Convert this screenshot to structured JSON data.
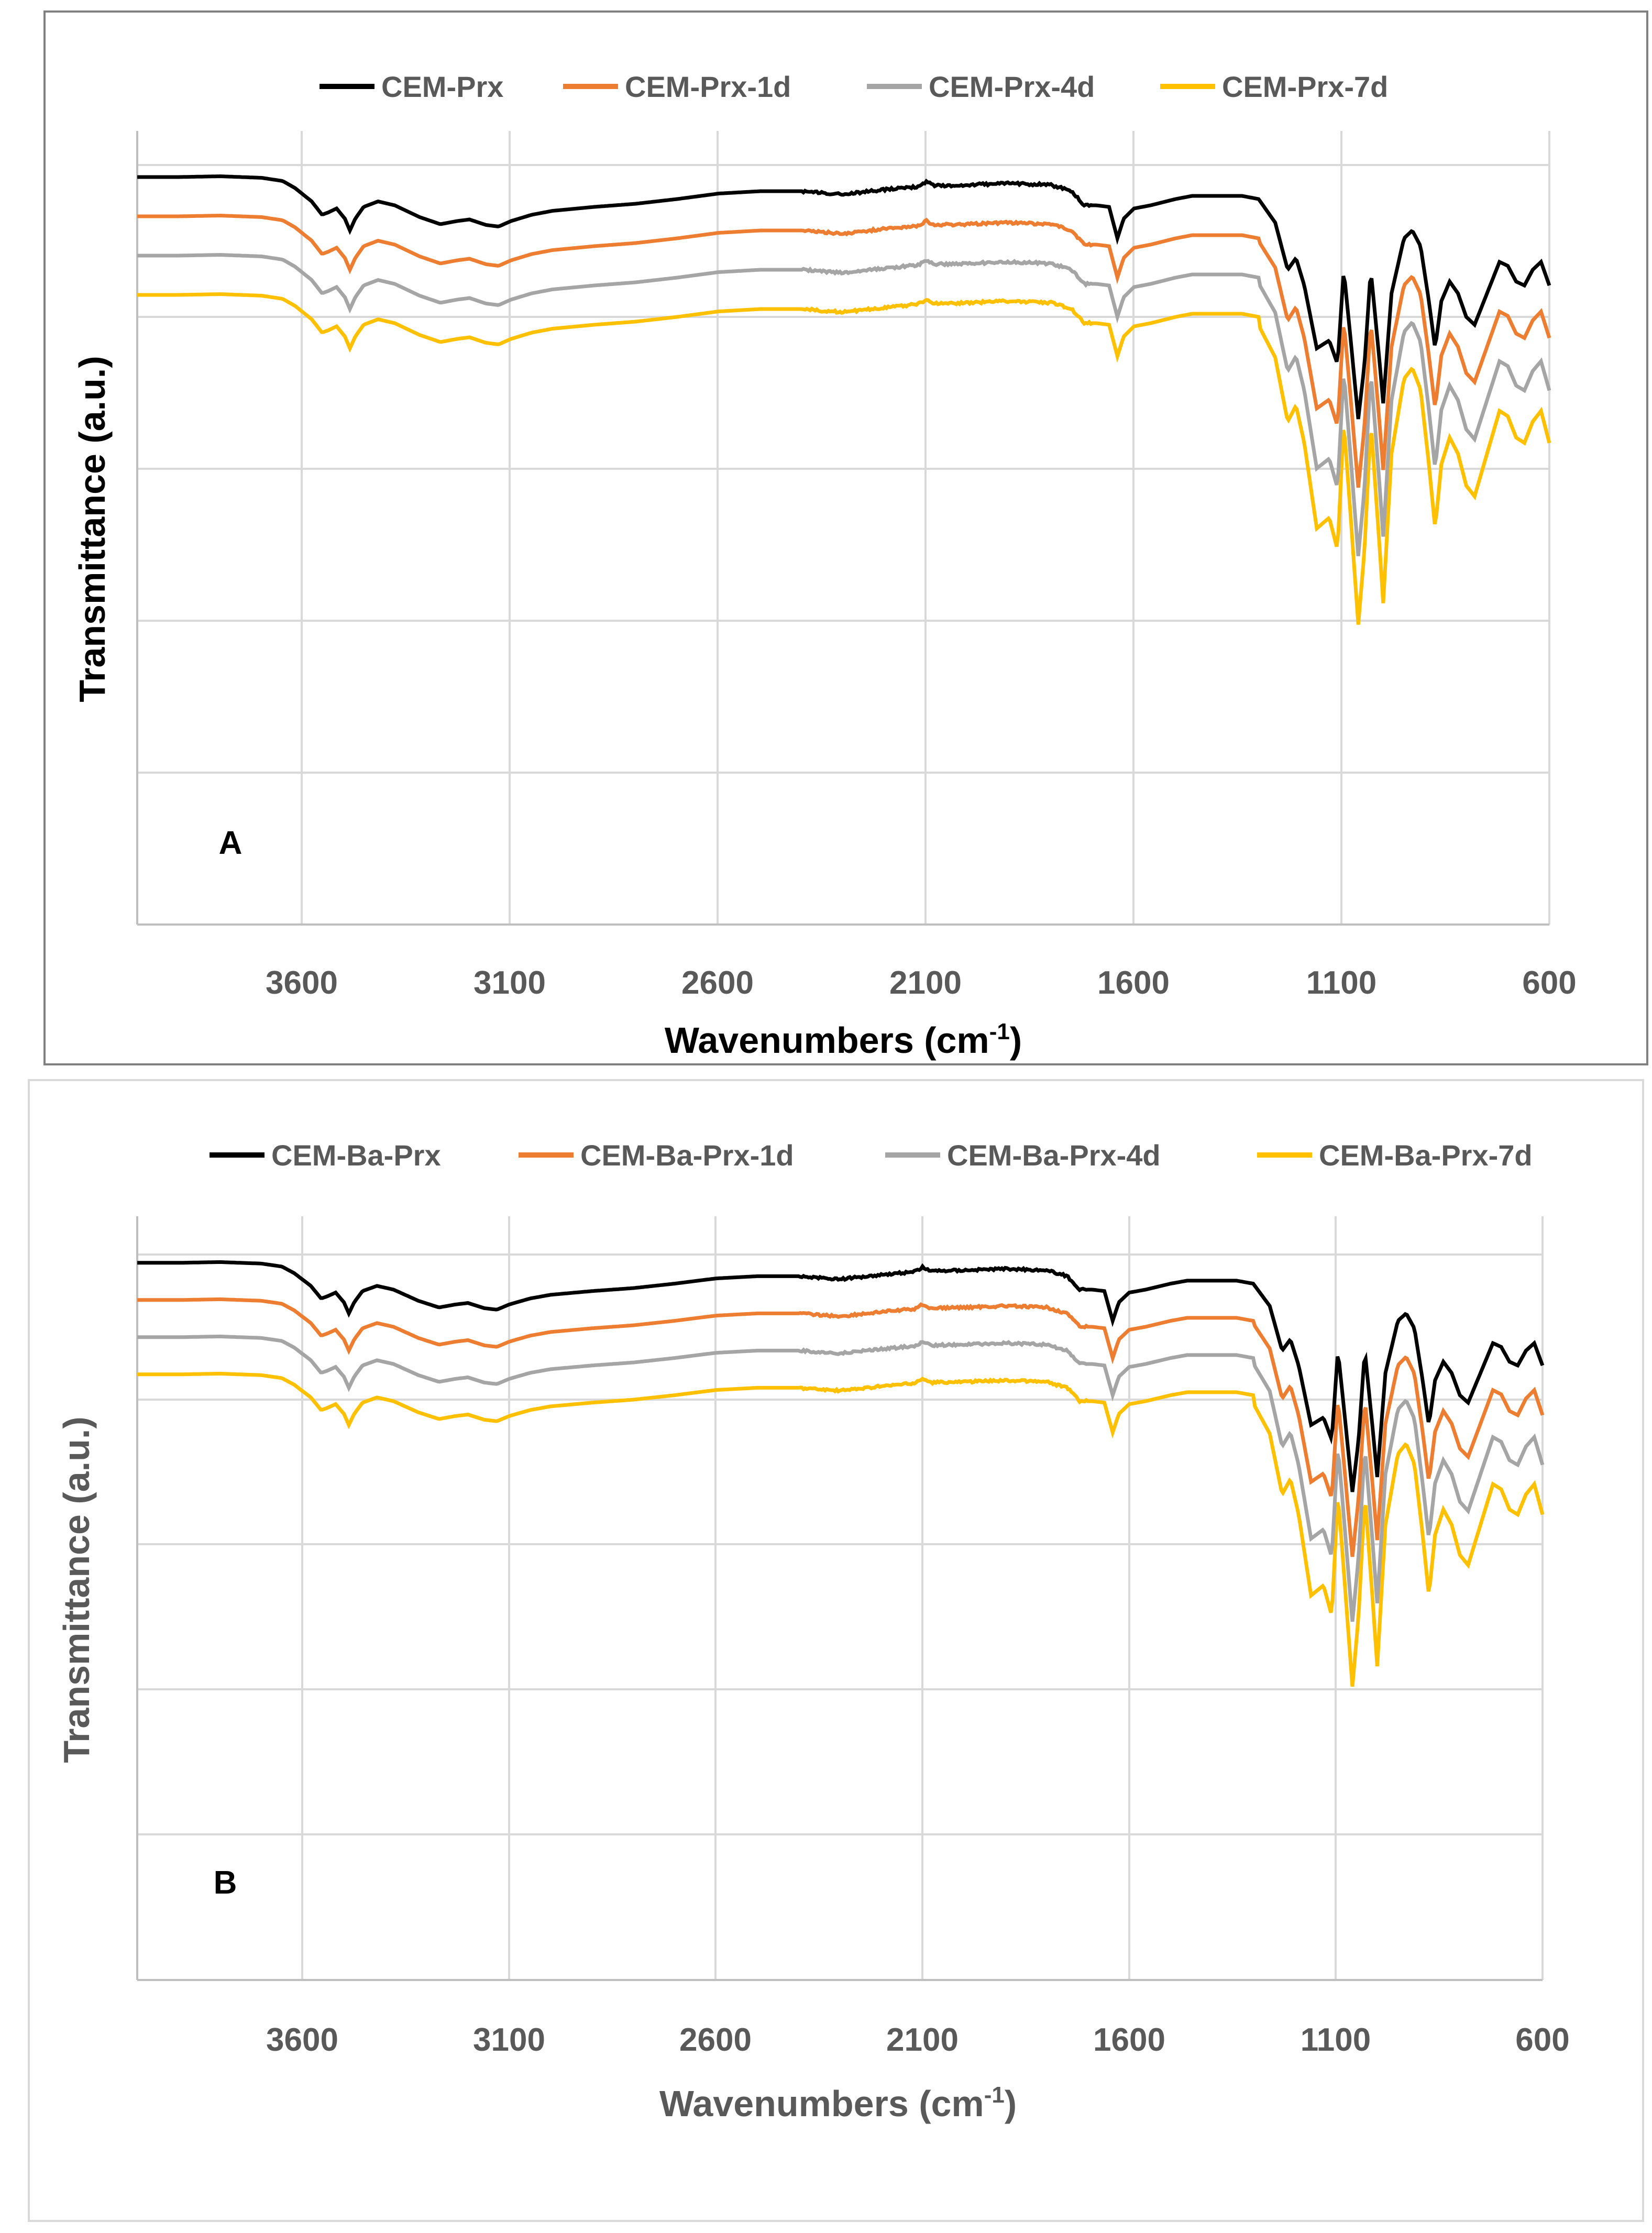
{
  "colors": {
    "black": "#000000",
    "orange": "#ED7D31",
    "gray": "#A5A5A5",
    "yellow": "#FFC000",
    "grid": "#D9D9D9",
    "frame": "#808080",
    "axis_text": "#595959"
  },
  "chart_data": [
    {
      "type": "line",
      "panel_label": "A",
      "xlabel": "Wavenumbers (cm",
      "xlabel_sup": "-1",
      "xlabel_close": ")",
      "ylabel": "Transmittance (a.u.)",
      "xlim": [
        4000,
        600
      ],
      "x_reversed": true,
      "xticks": [
        "3600",
        "3100",
        "2600",
        "2100",
        "1600",
        "1100",
        "600"
      ],
      "grid": "horizontal",
      "legend_position": "top",
      "series": [
        {
          "name": "CEM-Prx",
          "color": "#000000",
          "offset": 0
        },
        {
          "name": "CEM-Prx-1d",
          "color": "#ED7D31",
          "offset": 0.5
        },
        {
          "name": "CEM-Prx-4d",
          "color": "#A5A5A5",
          "offset": 1.0
        },
        {
          "name": "CEM-Prx-7d",
          "color": "#FFC000",
          "offset": 1.5
        }
      ]
    },
    {
      "type": "line",
      "panel_label": "B",
      "xlabel": "Wavenumbers (cm",
      "xlabel_sup": "-1",
      "xlabel_close": ")",
      "ylabel": "Transmittance (a.u.)",
      "xlim": [
        4000,
        600
      ],
      "x_reversed": true,
      "xticks": [
        "3600",
        "3100",
        "2600",
        "2100",
        "1600",
        "1100",
        "600"
      ],
      "grid": "horizontal",
      "legend_position": "top",
      "series": [
        {
          "name": "CEM-Ba-Prx",
          "color": "#000000",
          "offset": 0
        },
        {
          "name": "CEM-Ba-Prx-1d",
          "color": "#ED7D31",
          "offset": 0.5
        },
        {
          "name": "CEM-Ba-Prx-4d",
          "color": "#A5A5A5",
          "offset": 1.0
        },
        {
          "name": "CEM-Ba-Prx-7d",
          "color": "#FFC000",
          "offset": 1.5
        }
      ]
    }
  ],
  "spectrum_profile": [
    [
      4000,
      0.02
    ],
    [
      3900,
      0.02
    ],
    [
      3800,
      0.01
    ],
    [
      3700,
      0.03
    ],
    [
      3650,
      0.07
    ],
    [
      3620,
      0.16
    ],
    [
      3580,
      0.33
    ],
    [
      3555,
      0.5
    ],
    [
      3540,
      0.47
    ],
    [
      3520,
      0.42
    ],
    [
      3500,
      0.55
    ],
    [
      3488,
      0.7
    ],
    [
      3475,
      0.55
    ],
    [
      3455,
      0.4
    ],
    [
      3420,
      0.33
    ],
    [
      3380,
      0.38
    ],
    [
      3320,
      0.53
    ],
    [
      3270,
      0.62
    ],
    [
      3230,
      0.58
    ],
    [
      3200,
      0.56
    ],
    [
      3160,
      0.63
    ],
    [
      3130,
      0.65
    ],
    [
      3100,
      0.58
    ],
    [
      3050,
      0.5
    ],
    [
      3000,
      0.45
    ],
    [
      2900,
      0.4
    ],
    [
      2800,
      0.36
    ],
    [
      2700,
      0.3
    ],
    [
      2600,
      0.23
    ],
    [
      2500,
      0.2
    ],
    [
      2400,
      0.2
    ],
    [
      2300,
      0.24
    ],
    [
      2200,
      0.18
    ],
    [
      2120,
      0.14
    ],
    [
      2100,
      0.08
    ],
    [
      2080,
      0.13
    ],
    [
      2000,
      0.12
    ],
    [
      1900,
      0.1
    ],
    [
      1800,
      0.12
    ],
    [
      1750,
      0.2
    ],
    [
      1720,
      0.38
    ],
    [
      1690,
      0.38
    ],
    [
      1660,
      0.4
    ],
    [
      1640,
      0.8
    ],
    [
      1625,
      0.55
    ],
    [
      1600,
      0.42
    ],
    [
      1560,
      0.38
    ],
    [
      1500,
      0.3
    ],
    [
      1460,
      0.26
    ],
    [
      1420,
      0.26
    ],
    [
      1380,
      0.26
    ],
    [
      1340,
      0.26
    ],
    [
      1300,
      0.3
    ],
    [
      1260,
      0.6
    ],
    [
      1230,
      1.2
    ],
    [
      1210,
      1.05
    ],
    [
      1190,
      1.4
    ],
    [
      1160,
      2.2
    ],
    [
      1130,
      2.1
    ],
    [
      1110,
      2.4
    ],
    [
      1095,
      1.2
    ],
    [
      1080,
      2.0
    ],
    [
      1060,
      3.1
    ],
    [
      1045,
      2.4
    ],
    [
      1030,
      1.2
    ],
    [
      1010,
      2.3
    ],
    [
      1000,
      2.9
    ],
    [
      980,
      1.5
    ],
    [
      950,
      0.8
    ],
    [
      930,
      0.7
    ],
    [
      910,
      0.9
    ],
    [
      890,
      1.6
    ],
    [
      875,
      2.2
    ],
    [
      860,
      1.6
    ],
    [
      840,
      1.35
    ],
    [
      820,
      1.5
    ],
    [
      800,
      1.8
    ],
    [
      780,
      1.9
    ],
    [
      750,
      1.5
    ],
    [
      720,
      1.1
    ],
    [
      700,
      1.15
    ],
    [
      680,
      1.35
    ],
    [
      660,
      1.4
    ],
    [
      640,
      1.2
    ],
    [
      620,
      1.1
    ],
    [
      600,
      1.4
    ]
  ]
}
